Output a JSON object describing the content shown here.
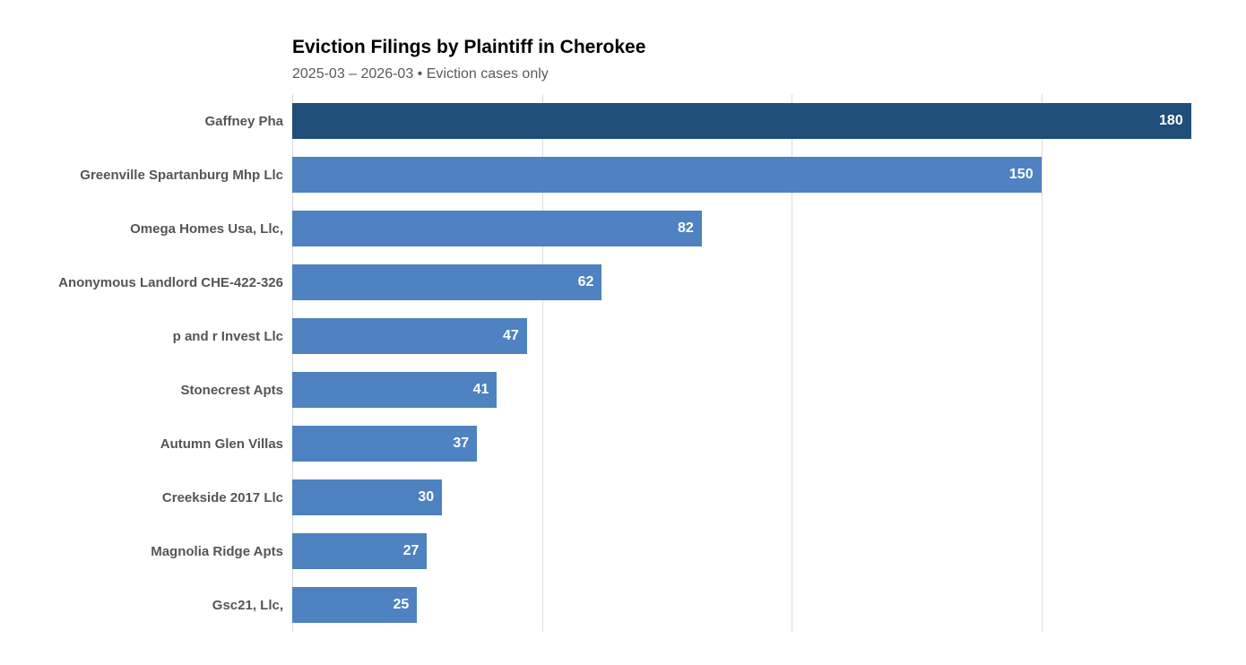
{
  "header": {
    "title": "Eviction Filings by Plaintiff in Cherokee",
    "subtitle": "2025-03 – 2026-03 • Eviction cases only"
  },
  "chart_data": {
    "type": "bar",
    "orientation": "horizontal",
    "title": "Eviction Filings by Plaintiff in Cherokee",
    "subtitle": "2025-03 – 2026-03 • Eviction cases only",
    "categories": [
      "Gaffney Pha",
      "Greenville Spartanburg Mhp Llc",
      "Omega Homes Usa, Llc,",
      "Anonymous Landlord CHE-422-326",
      "p and r Invest Llc",
      "Stonecrest Apts",
      "Autumn Glen Villas",
      "Creekside 2017 Llc",
      "Magnolia Ridge Apts",
      "Gsc21, Llc,"
    ],
    "values": [
      180,
      150,
      82,
      62,
      47,
      41,
      37,
      30,
      27,
      25
    ],
    "xlabel": "",
    "ylabel": "",
    "xlim": [
      0,
      191
    ],
    "gridline_values": [
      50,
      100,
      150
    ],
    "grid": "vertical",
    "legend": "none",
    "value_labels": "inside-end",
    "colors": {
      "bar": "#4e82c0",
      "highlight": "#1f4e78",
      "highlight_index": 0,
      "value_text": "#ffffff",
      "category_text": "#555555",
      "gridline": "#dddddd",
      "background": "#ffffff"
    }
  }
}
